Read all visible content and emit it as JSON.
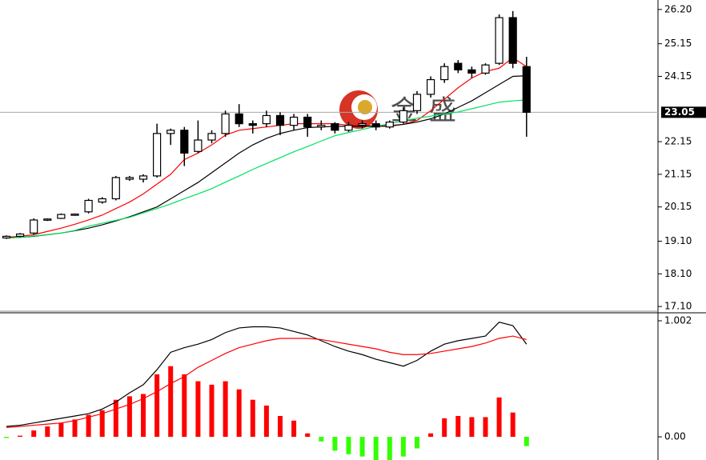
{
  "chart_data": [
    {
      "type": "candlestick",
      "open": [
        19.2,
        19.25,
        19.35,
        19.75,
        19.8,
        19.9,
        20.0,
        20.3,
        20.4,
        21.0,
        21.0,
        21.1,
        22.4,
        22.5,
        21.85,
        22.2,
        22.4,
        23.0,
        22.7,
        22.7,
        22.95,
        22.65,
        22.9,
        22.6,
        22.7,
        22.5,
        22.65,
        22.7,
        22.6,
        22.75,
        23.1,
        23.6,
        24.05,
        24.55,
        24.35,
        24.25,
        24.55,
        25.95,
        24.45
      ],
      "high": [
        19.28,
        19.35,
        19.8,
        19.8,
        19.95,
        19.95,
        20.4,
        20.45,
        21.1,
        21.1,
        21.15,
        22.7,
        22.55,
        22.6,
        22.8,
        22.5,
        23.1,
        23.3,
        22.8,
        23.1,
        23.05,
        23.0,
        23.0,
        22.8,
        22.75,
        22.75,
        22.8,
        22.8,
        22.8,
        23.2,
        23.7,
        24.15,
        24.55,
        24.65,
        24.45,
        24.55,
        26.05,
        26.15,
        24.75
      ],
      "low": [
        19.17,
        19.22,
        19.3,
        19.72,
        19.78,
        19.88,
        19.95,
        20.25,
        20.35,
        20.95,
        20.9,
        21.05,
        22.05,
        21.4,
        21.8,
        22.1,
        22.3,
        22.6,
        22.4,
        22.6,
        22.35,
        22.5,
        22.3,
        22.5,
        22.4,
        22.45,
        22.55,
        22.5,
        22.55,
        22.7,
        23.0,
        23.5,
        23.95,
        24.25,
        24.1,
        24.2,
        24.5,
        24.4,
        22.3
      ],
      "close": [
        19.25,
        19.32,
        19.75,
        19.78,
        19.92,
        19.93,
        20.35,
        20.4,
        21.05,
        21.05,
        21.1,
        22.4,
        22.5,
        21.8,
        22.2,
        22.4,
        23.0,
        22.7,
        22.65,
        22.95,
        22.65,
        22.9,
        22.6,
        22.65,
        22.5,
        22.65,
        22.7,
        22.6,
        22.75,
        23.1,
        23.6,
        24.05,
        24.45,
        24.35,
        24.25,
        24.5,
        25.95,
        24.55,
        23.05
      ],
      "up_color": "#ffffff",
      "down_color": "#000000",
      "series": [
        {
          "color": "#ff0000",
          "values": [
            19.22,
            19.25,
            19.3,
            19.4,
            19.5,
            19.62,
            19.75,
            19.9,
            20.1,
            20.3,
            20.55,
            20.85,
            21.15,
            21.6,
            21.8,
            22.05,
            22.35,
            22.5,
            22.55,
            22.6,
            22.65,
            22.7,
            22.7,
            22.7,
            22.7,
            22.65,
            22.65,
            22.62,
            22.62,
            22.68,
            22.8,
            23.1,
            23.45,
            23.8,
            24.1,
            24.3,
            24.4,
            24.72,
            24.45
          ]
        },
        {
          "color": "#000000",
          "values": [
            19.2,
            19.22,
            19.25,
            19.3,
            19.35,
            19.42,
            19.5,
            19.6,
            19.72,
            19.85,
            20.0,
            20.15,
            20.4,
            20.65,
            20.9,
            21.2,
            21.5,
            21.8,
            22.05,
            22.25,
            22.4,
            22.5,
            22.58,
            22.6,
            22.62,
            22.62,
            22.62,
            22.62,
            22.64,
            22.68,
            22.75,
            22.85,
            23.0,
            23.2,
            23.4,
            23.65,
            23.9,
            24.15,
            24.17
          ]
        },
        {
          "color": "#00e060",
          "values": [
            19.19,
            19.22,
            19.26,
            19.3,
            19.35,
            19.43,
            19.56,
            19.65,
            19.74,
            19.83,
            19.97,
            20.1,
            20.24,
            20.4,
            20.55,
            20.71,
            20.91,
            21.1,
            21.3,
            21.48,
            21.66,
            21.84,
            22.0,
            22.17,
            22.33,
            22.43,
            22.52,
            22.62,
            22.7,
            22.79,
            22.87,
            22.93,
            23.0,
            23.06,
            23.16,
            23.26,
            23.36,
            23.4,
            23.43
          ]
        }
      ],
      "ylim": [
        16.98,
        26.49
      ],
      "yticks": [
        {
          "value": 26.2,
          "label": "26.20"
        },
        25.15,
        24.15,
        22.15,
        21.15,
        20.15,
        {
          "value": 19.1,
          "label": "19.10"
        },
        {
          "value": 18.1,
          "label": "18.10"
        },
        {
          "value": 17.1,
          "label": "17.10"
        }
      ],
      "price_line": {
        "value": 23.05,
        "label": "23.05"
      },
      "watermark": "金盛"
    },
    {
      "type": "macd",
      "values": [
        -0.01,
        0.01,
        0.055,
        0.09,
        0.12,
        0.15,
        0.19,
        0.23,
        0.32,
        0.35,
        0.37,
        0.54,
        0.61,
        0.54,
        0.48,
        0.45,
        0.48,
        0.41,
        0.32,
        0.27,
        0.18,
        0.14,
        0.03,
        -0.04,
        -0.12,
        -0.15,
        -0.17,
        -0.2,
        -0.2,
        -0.17,
        -0.1,
        0.03,
        0.16,
        0.18,
        0.17,
        0.17,
        0.34,
        0.21,
        -0.08
      ],
      "up_color": "#ff0000",
      "down_color": "#33ff00",
      "series": [
        {
          "color": "#000000",
          "values": [
            0.09,
            0.1,
            0.12,
            0.14,
            0.16,
            0.18,
            0.2,
            0.24,
            0.3,
            0.38,
            0.45,
            0.58,
            0.73,
            0.77,
            0.8,
            0.84,
            0.9,
            0.94,
            0.95,
            0.95,
            0.94,
            0.91,
            0.88,
            0.83,
            0.78,
            0.74,
            0.71,
            0.67,
            0.64,
            0.61,
            0.66,
            0.74,
            0.8,
            0.83,
            0.85,
            0.87,
            0.99,
            0.96,
            0.8
          ]
        },
        {
          "color": "#ff0000",
          "values": [
            0.08,
            0.09,
            0.1,
            0.11,
            0.12,
            0.14,
            0.17,
            0.2,
            0.24,
            0.28,
            0.33,
            0.39,
            0.46,
            0.52,
            0.6,
            0.66,
            0.72,
            0.77,
            0.8,
            0.83,
            0.85,
            0.85,
            0.85,
            0.84,
            0.82,
            0.8,
            0.78,
            0.76,
            0.73,
            0.71,
            0.71,
            0.72,
            0.74,
            0.76,
            0.78,
            0.81,
            0.85,
            0.87,
            0.84
          ]
        }
      ],
      "ylim": [
        -0.2,
        1.064
      ],
      "yticks": [
        {
          "value": 1.002,
          "label": "1.002"
        },
        {
          "value": 0,
          "label": "0.00"
        }
      ]
    }
  ]
}
